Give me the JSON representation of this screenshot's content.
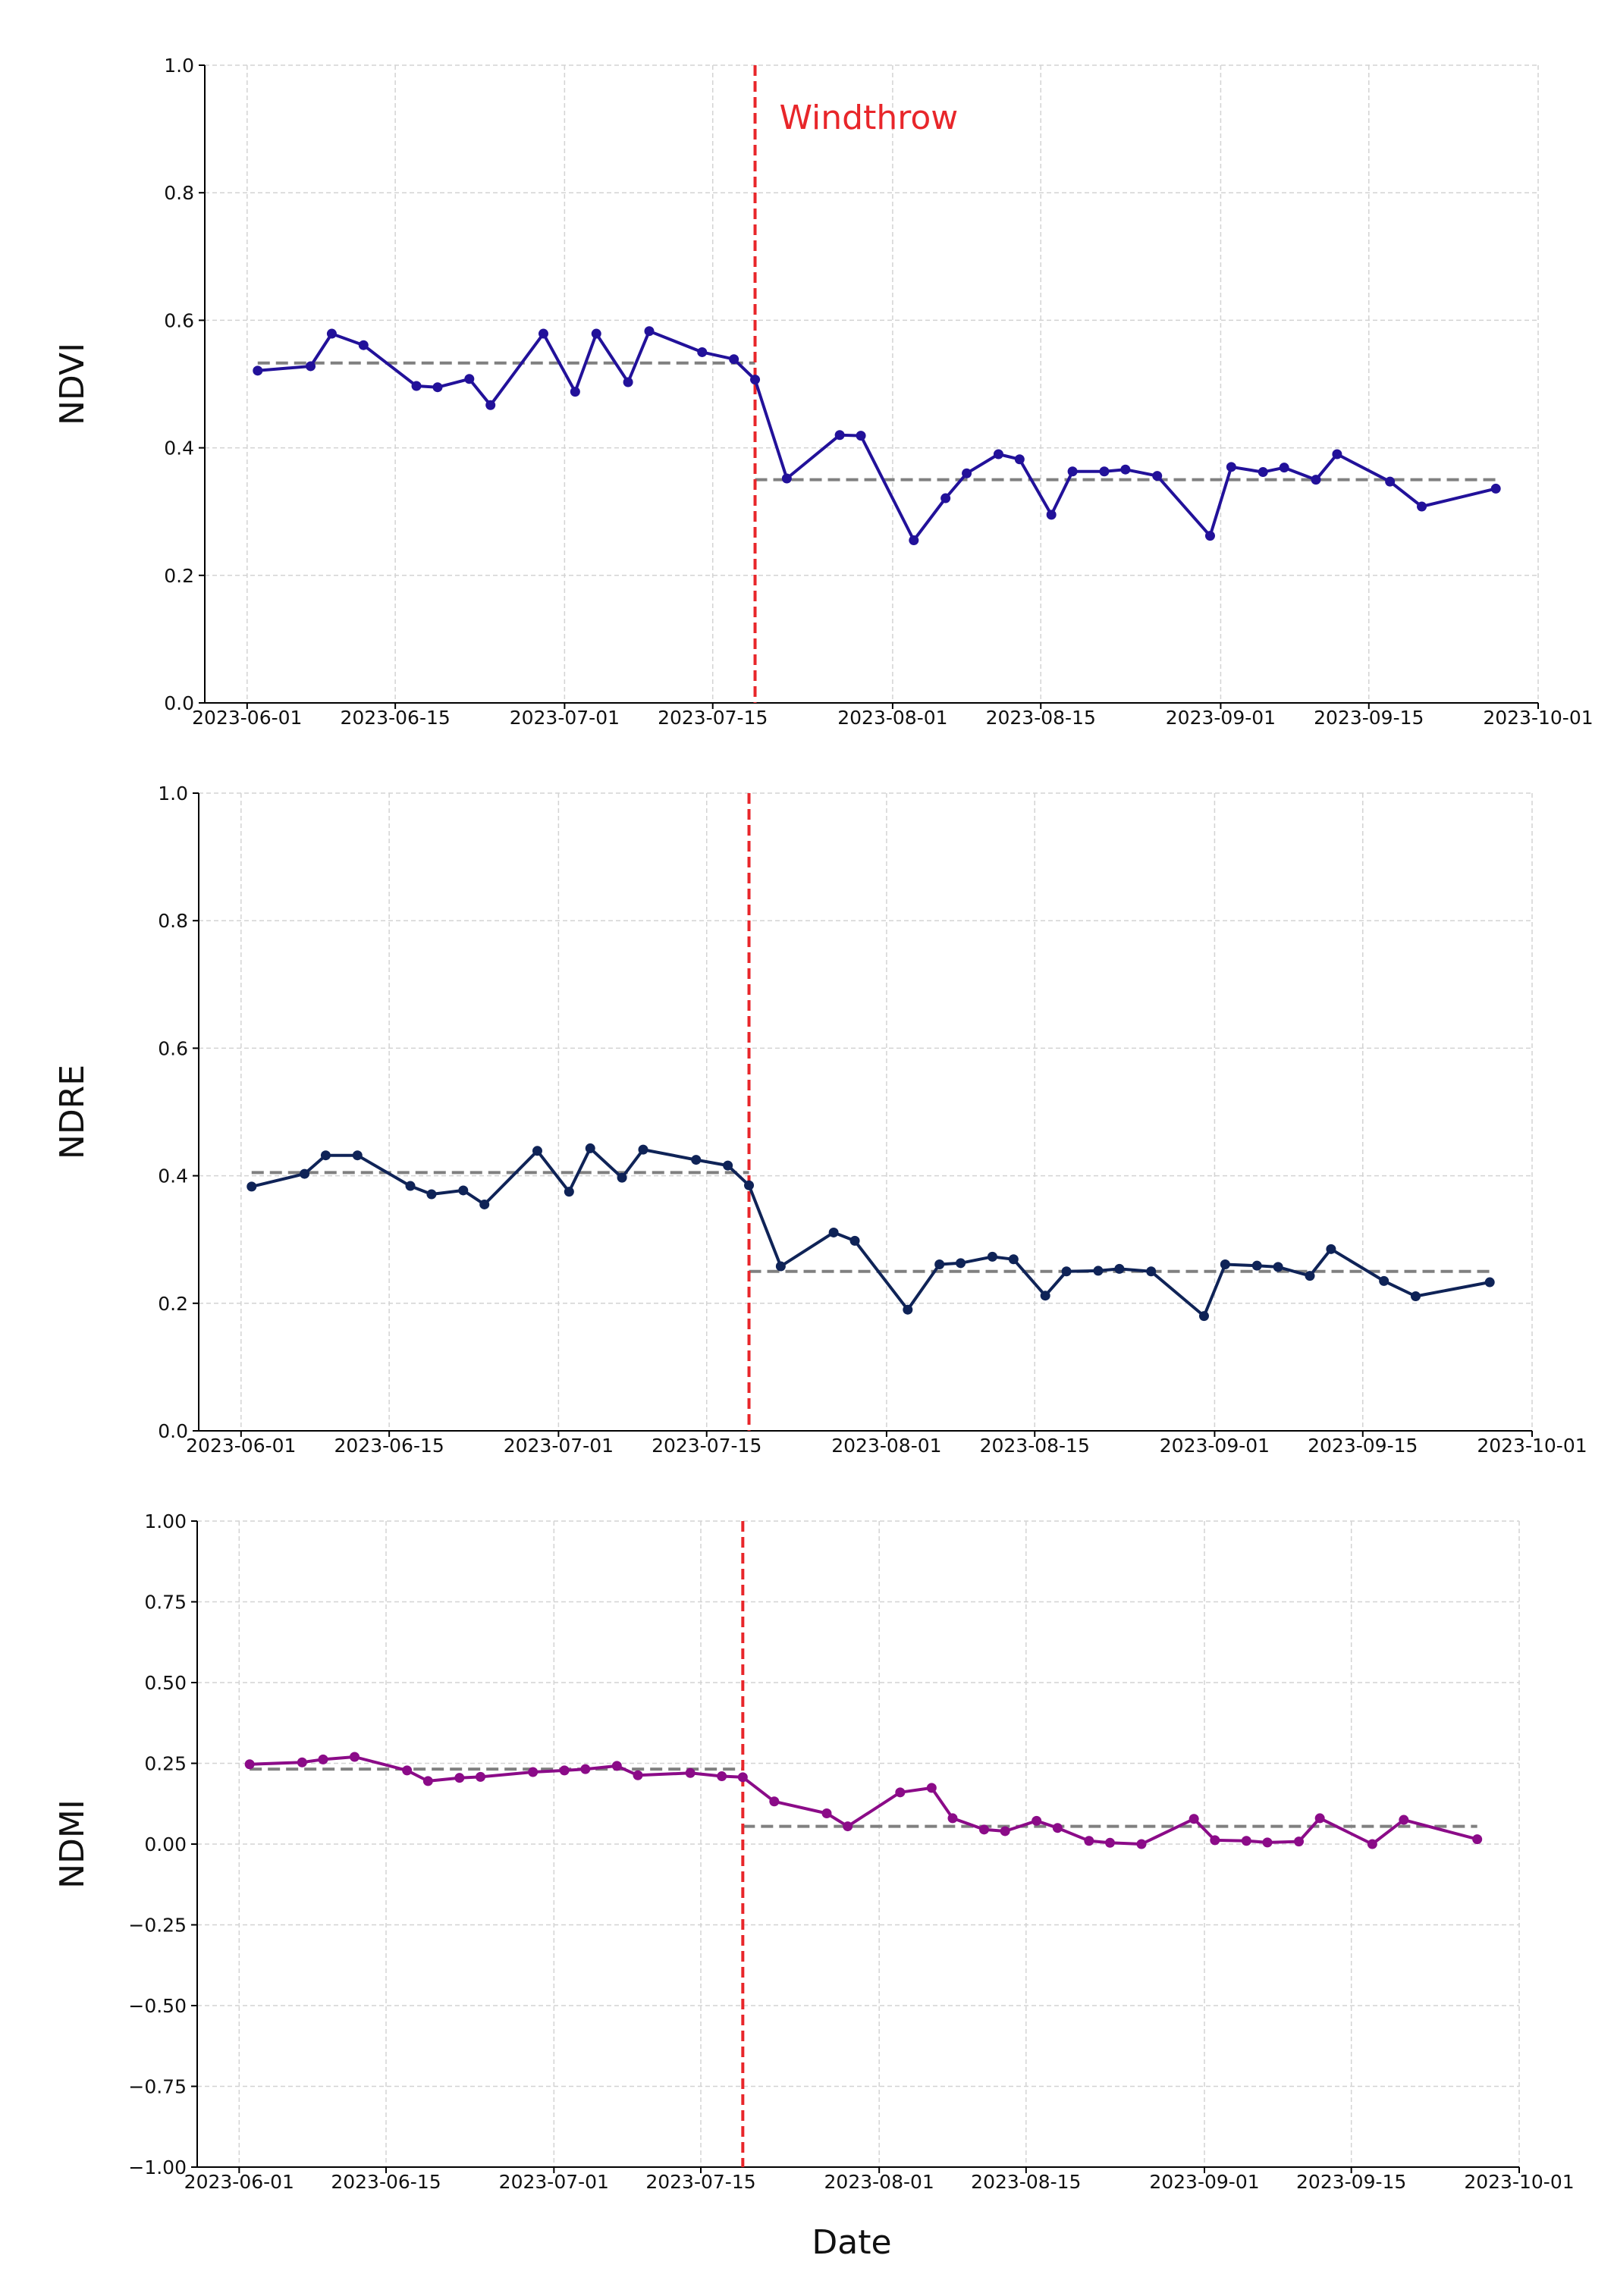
{
  "figure": {
    "xlabel": "Date",
    "event_color": "#e8262a",
    "mean_color": "#808080",
    "grid_color": "#d3d3d3"
  },
  "chart_data": [
    {
      "type": "line",
      "ylabel": "NDVI",
      "color": "#22119a",
      "ylim": [
        0,
        1
      ],
      "yticks": [
        0,
        0.2,
        0.4,
        0.6,
        0.8,
        1.0
      ],
      "ytick_labels": [
        "0.0",
        "0.2",
        "0.4",
        "0.6",
        "0.8",
        "1.0"
      ],
      "xlim": [
        "2023-05-28",
        "2023-10-01"
      ],
      "xticks": [
        "2023-06-01",
        "2023-06-15",
        "2023-07-01",
        "2023-07-15",
        "2023-08-01",
        "2023-08-15",
        "2023-09-01",
        "2023-09-15",
        "2023-10-01"
      ],
      "event": {
        "date": "2023-07-19",
        "label": "Windthrow"
      },
      "mean_before": {
        "from": "2023-06-02",
        "to": "2023-07-19",
        "value": 0.533
      },
      "mean_after": {
        "from": "2023-07-19",
        "to": "2023-09-27",
        "value": 0.35
      },
      "points": [
        [
          "2023-06-02",
          0.521
        ],
        [
          "2023-06-07",
          0.528
        ],
        [
          "2023-06-09",
          0.579
        ],
        [
          "2023-06-12",
          0.561
        ],
        [
          "2023-06-17",
          0.497
        ],
        [
          "2023-06-19",
          0.495
        ],
        [
          "2023-06-22",
          0.508
        ],
        [
          "2023-06-24",
          0.467
        ],
        [
          "2023-06-29",
          0.579
        ],
        [
          "2023-07-02",
          0.488
        ],
        [
          "2023-07-04",
          0.579
        ],
        [
          "2023-07-07",
          0.503
        ],
        [
          "2023-07-09",
          0.583
        ],
        [
          "2023-07-14",
          0.55
        ],
        [
          "2023-07-17",
          0.539
        ],
        [
          "2023-07-19",
          0.507
        ],
        [
          "2023-07-22",
          0.352
        ],
        [
          "2023-07-27",
          0.42
        ],
        [
          "2023-07-29",
          0.419
        ],
        [
          "2023-08-03",
          0.255
        ],
        [
          "2023-08-06",
          0.321
        ],
        [
          "2023-08-08",
          0.36
        ],
        [
          "2023-08-11",
          0.39
        ],
        [
          "2023-08-13",
          0.382
        ],
        [
          "2023-08-16",
          0.295
        ],
        [
          "2023-08-18",
          0.363
        ],
        [
          "2023-08-21",
          0.363
        ],
        [
          "2023-08-23",
          0.366
        ],
        [
          "2023-08-26",
          0.356
        ],
        [
          "2023-08-31",
          0.262
        ],
        [
          "2023-09-02",
          0.37
        ],
        [
          "2023-09-05",
          0.362
        ],
        [
          "2023-09-07",
          0.369
        ],
        [
          "2023-09-10",
          0.35
        ],
        [
          "2023-09-12",
          0.39
        ],
        [
          "2023-09-17",
          0.347
        ],
        [
          "2023-09-20",
          0.308
        ],
        [
          "2023-09-27",
          0.336
        ]
      ]
    },
    {
      "type": "line",
      "ylabel": "NDRE",
      "color": "#0f2357",
      "ylim": [
        0,
        1
      ],
      "yticks": [
        0,
        0.2,
        0.4,
        0.6,
        0.8,
        1.0
      ],
      "ytick_labels": [
        "0.0",
        "0.2",
        "0.4",
        "0.6",
        "0.8",
        "1.0"
      ],
      "xlim": [
        "2023-05-28",
        "2023-10-01"
      ],
      "xticks": [
        "2023-06-01",
        "2023-06-15",
        "2023-07-01",
        "2023-07-15",
        "2023-08-01",
        "2023-08-15",
        "2023-09-01",
        "2023-09-15",
        "2023-10-01"
      ],
      "event": {
        "date": "2023-07-19",
        "label": ""
      },
      "mean_before": {
        "from": "2023-06-02",
        "to": "2023-07-19",
        "value": 0.405
      },
      "mean_after": {
        "from": "2023-07-19",
        "to": "2023-09-27",
        "value": 0.25
      },
      "points": [
        [
          "2023-06-02",
          0.383
        ],
        [
          "2023-06-07",
          0.403
        ],
        [
          "2023-06-09",
          0.432
        ],
        [
          "2023-06-12",
          0.432
        ],
        [
          "2023-06-17",
          0.384
        ],
        [
          "2023-06-19",
          0.371
        ],
        [
          "2023-06-22",
          0.377
        ],
        [
          "2023-06-24",
          0.355
        ],
        [
          "2023-06-29",
          0.439
        ],
        [
          "2023-07-02",
          0.375
        ],
        [
          "2023-07-04",
          0.443
        ],
        [
          "2023-07-07",
          0.397
        ],
        [
          "2023-07-09",
          0.441
        ],
        [
          "2023-07-14",
          0.425
        ],
        [
          "2023-07-17",
          0.416
        ],
        [
          "2023-07-19",
          0.385
        ],
        [
          "2023-07-22",
          0.258
        ],
        [
          "2023-07-27",
          0.311
        ],
        [
          "2023-07-29",
          0.298
        ],
        [
          "2023-08-03",
          0.19
        ],
        [
          "2023-08-06",
          0.261
        ],
        [
          "2023-08-08",
          0.263
        ],
        [
          "2023-08-11",
          0.273
        ],
        [
          "2023-08-13",
          0.269
        ],
        [
          "2023-08-16",
          0.212
        ],
        [
          "2023-08-18",
          0.25
        ],
        [
          "2023-08-21",
          0.251
        ],
        [
          "2023-08-23",
          0.254
        ],
        [
          "2023-08-26",
          0.25
        ],
        [
          "2023-08-31",
          0.18
        ],
        [
          "2023-09-02",
          0.261
        ],
        [
          "2023-09-05",
          0.259
        ],
        [
          "2023-09-07",
          0.257
        ],
        [
          "2023-09-10",
          0.243
        ],
        [
          "2023-09-12",
          0.285
        ],
        [
          "2023-09-17",
          0.235
        ],
        [
          "2023-09-20",
          0.211
        ],
        [
          "2023-09-27",
          0.233
        ]
      ]
    },
    {
      "type": "line",
      "ylabel": "NDMI",
      "color": "#8b0b88",
      "ylim": [
        -1,
        1
      ],
      "yticks": [
        -1,
        -0.75,
        -0.5,
        -0.25,
        0,
        0.25,
        0.5,
        0.75,
        1.0
      ],
      "ytick_labels": [
        "−1.00",
        "−0.75",
        "−0.50",
        "−0.25",
        "0.00",
        "0.25",
        "0.50",
        "0.75",
        "1.00"
      ],
      "xlim": [
        "2023-05-28",
        "2023-10-01"
      ],
      "xticks": [
        "2023-06-01",
        "2023-06-15",
        "2023-07-01",
        "2023-07-15",
        "2023-08-01",
        "2023-08-15",
        "2023-09-01",
        "2023-09-15",
        "2023-10-01"
      ],
      "event": {
        "date": "2023-07-19",
        "label": ""
      },
      "mean_before": {
        "from": "2023-06-02",
        "to": "2023-07-19",
        "value": 0.232
      },
      "mean_after": {
        "from": "2023-07-19",
        "to": "2023-09-27",
        "value": 0.055
      },
      "points": [
        [
          "2023-06-02",
          0.247
        ],
        [
          "2023-06-07",
          0.253
        ],
        [
          "2023-06-09",
          0.262
        ],
        [
          "2023-06-12",
          0.27
        ],
        [
          "2023-06-17",
          0.228
        ],
        [
          "2023-06-19",
          0.195
        ],
        [
          "2023-06-22",
          0.205
        ],
        [
          "2023-06-24",
          0.208
        ],
        [
          "2023-06-29",
          0.223
        ],
        [
          "2023-07-02",
          0.228
        ],
        [
          "2023-07-04",
          0.232
        ],
        [
          "2023-07-07",
          0.242
        ],
        [
          "2023-07-09",
          0.213
        ],
        [
          "2023-07-14",
          0.22
        ],
        [
          "2023-07-17",
          0.21
        ],
        [
          "2023-07-19",
          0.207
        ],
        [
          "2023-07-22",
          0.132
        ],
        [
          "2023-07-27",
          0.095
        ],
        [
          "2023-07-29",
          0.055
        ],
        [
          "2023-08-03",
          0.16
        ],
        [
          "2023-08-06",
          0.174
        ],
        [
          "2023-08-08",
          0.08
        ],
        [
          "2023-08-11",
          0.045
        ],
        [
          "2023-08-13",
          0.04
        ],
        [
          "2023-08-16",
          0.072
        ],
        [
          "2023-08-18",
          0.05
        ],
        [
          "2023-08-21",
          0.01
        ],
        [
          "2023-08-23",
          0.004
        ],
        [
          "2023-08-26",
          0.0
        ],
        [
          "2023-08-31",
          0.078
        ],
        [
          "2023-09-02",
          0.012
        ],
        [
          "2023-09-05",
          0.01
        ],
        [
          "2023-09-07",
          0.005
        ],
        [
          "2023-09-10",
          0.008
        ],
        [
          "2023-09-12",
          0.08
        ],
        [
          "2023-09-17",
          0.0
        ],
        [
          "2023-09-20",
          0.075
        ],
        [
          "2023-09-27",
          0.015
        ]
      ]
    }
  ]
}
